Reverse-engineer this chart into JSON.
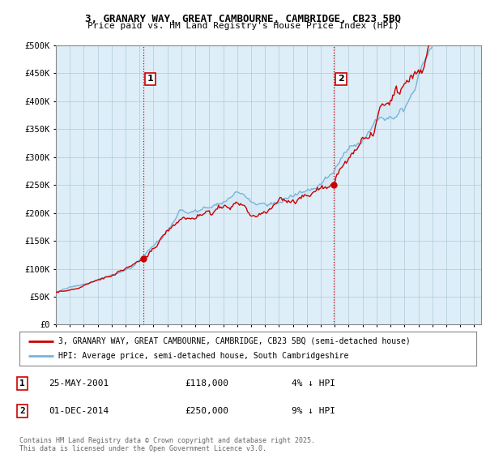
{
  "title_line1": "3, GRANARY WAY, GREAT CAMBOURNE, CAMBRIDGE, CB23 5BQ",
  "title_line2": "Price paid vs. HM Land Registry's House Price Index (HPI)",
  "ylim": [
    0,
    500000
  ],
  "yticks": [
    0,
    50000,
    100000,
    150000,
    200000,
    250000,
    300000,
    350000,
    400000,
    450000,
    500000
  ],
  "ytick_labels": [
    "£0",
    "£50K",
    "£100K",
    "£150K",
    "£200K",
    "£250K",
    "£300K",
    "£350K",
    "£400K",
    "£450K",
    "£500K"
  ],
  "hpi_color": "#7ab4d8",
  "price_color": "#cc0000",
  "fill_color": "#d0e8f5",
  "marker1_price": 118000,
  "marker2_price": 250000,
  "legend_line1": "3, GRANARY WAY, GREAT CAMBOURNE, CAMBRIDGE, CB23 5BQ (semi-detached house)",
  "legend_line2": "HPI: Average price, semi-detached house, South Cambridgeshire",
  "footer": "Contains HM Land Registry data © Crown copyright and database right 2025.\nThis data is licensed under the Open Government Licence v3.0.",
  "bg_color": "#ffffff",
  "chart_bg_color": "#ddeef8",
  "grid_color": "#b0c8d8",
  "vline_color": "#cc0000",
  "vline_style": ":"
}
